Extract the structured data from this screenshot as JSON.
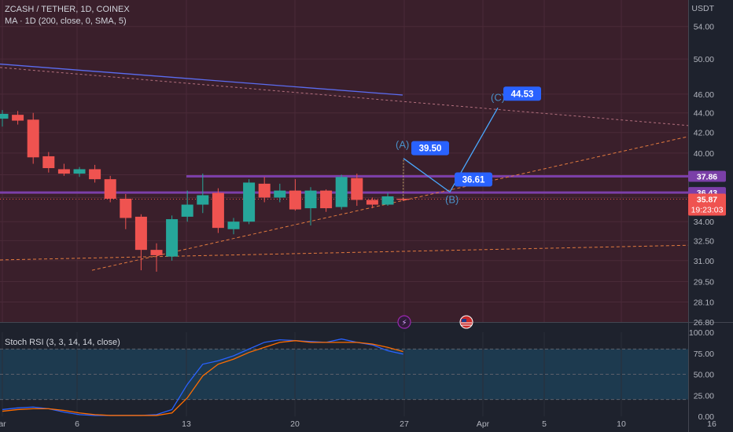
{
  "header": {
    "symbol_line": "ZCASH / TETHER, 1D, COINEX",
    "ma_line": "MA · 1D (200, close, 0, SMA, 5)",
    "currency": "USDT"
  },
  "rsi": {
    "label": "Stoch RSI (3, 3, 14, 14, close)"
  },
  "colors": {
    "background": "#1e222d",
    "main_pane": "#3a1f2b",
    "rsi_band": "#1d3a4f",
    "up": "#26a69a",
    "down": "#ef5350",
    "ma": "#5b6cf0",
    "level_band": "#7b3fa8",
    "trend_dash": "#e27a3f",
    "projection": "#4aa8ff",
    "stoch_k": "#2962ff",
    "stoch_d": "#ff6d00"
  },
  "chart_data": [
    {
      "type": "candlestick",
      "title": "ZCASH / TETHER, 1D, COINEX",
      "ylabel": "USDT",
      "y_scale": "log",
      "ylim": [
        26.8,
        57.5
      ],
      "x_ticks": [
        "ar",
        "6",
        "13",
        "20",
        "27",
        "Apr",
        "5",
        "10",
        "16"
      ],
      "y_ticks": [
        "54.00",
        "50.00",
        "46.00",
        "44.00",
        "42.00",
        "40.00",
        "38.00",
        "36.00",
        "34.00",
        "32.50",
        "31.00",
        "29.50",
        "28.10",
        "26.80"
      ],
      "candles": [
        {
          "o": 43.4,
          "h": 44.3,
          "l": 42.6,
          "c": 43.9
        },
        {
          "o": 43.8,
          "h": 44.2,
          "l": 42.8,
          "c": 43.2
        },
        {
          "o": 43.3,
          "h": 44.0,
          "l": 39.0,
          "c": 39.6
        },
        {
          "o": 39.7,
          "h": 40.1,
          "l": 38.2,
          "c": 38.6
        },
        {
          "o": 38.5,
          "h": 39.0,
          "l": 37.9,
          "c": 38.1
        },
        {
          "o": 38.1,
          "h": 38.7,
          "l": 37.8,
          "c": 38.5
        },
        {
          "o": 38.5,
          "h": 38.9,
          "l": 37.3,
          "c": 37.6
        },
        {
          "o": 37.6,
          "h": 37.9,
          "l": 35.6,
          "c": 35.9
        },
        {
          "o": 35.9,
          "h": 36.3,
          "l": 33.4,
          "c": 34.3
        },
        {
          "o": 34.4,
          "h": 34.6,
          "l": 30.3,
          "c": 31.8
        },
        {
          "o": 31.8,
          "h": 32.3,
          "l": 30.2,
          "c": 31.4
        },
        {
          "o": 31.3,
          "h": 34.5,
          "l": 31.0,
          "c": 34.2
        },
        {
          "o": 34.4,
          "h": 36.6,
          "l": 34.0,
          "c": 35.4
        },
        {
          "o": 35.4,
          "h": 38.1,
          "l": 34.7,
          "c": 36.2
        },
        {
          "o": 36.4,
          "h": 36.8,
          "l": 33.1,
          "c": 33.5
        },
        {
          "o": 33.4,
          "h": 34.3,
          "l": 33.0,
          "c": 34.0
        },
        {
          "o": 34.0,
          "h": 37.6,
          "l": 33.8,
          "c": 37.3
        },
        {
          "o": 37.2,
          "h": 37.8,
          "l": 35.6,
          "c": 36.0
        },
        {
          "o": 36.0,
          "h": 37.2,
          "l": 35.6,
          "c": 36.6
        },
        {
          "o": 36.6,
          "h": 37.6,
          "l": 34.9,
          "c": 35.0
        },
        {
          "o": 35.1,
          "h": 36.9,
          "l": 33.7,
          "c": 36.6
        },
        {
          "o": 36.6,
          "h": 36.7,
          "l": 34.8,
          "c": 35.1
        },
        {
          "o": 35.2,
          "h": 38.0,
          "l": 35.0,
          "c": 37.8
        },
        {
          "o": 37.7,
          "h": 38.1,
          "l": 35.3,
          "c": 35.8
        },
        {
          "o": 35.8,
          "h": 36.0,
          "l": 35.1,
          "c": 35.4
        },
        {
          "o": 35.4,
          "h": 36.4,
          "l": 35.3,
          "c": 36.1
        },
        {
          "o": 35.9,
          "h": 36.0,
          "l": 35.7,
          "c": 35.87
        }
      ],
      "moving_average": {
        "name": "MA · 1D (200, close, 0, SMA, 5)",
        "start": 49.4,
        "end": 45.9
      },
      "levels": [
        37.86,
        36.43
      ],
      "last_price": "35.87",
      "countdown": "19:23:03",
      "price_labels": [
        "37.86",
        "36.43",
        "35.87",
        "19:23:03"
      ],
      "projection": {
        "labels": [
          "(A)",
          "(B)",
          "(C)"
        ],
        "targets": [
          "39.50",
          "36.61",
          "44.53"
        ],
        "values": [
          39.5,
          36.61,
          44.53
        ]
      },
      "event_icons": [
        "lightning-icon",
        "us-flag-icon"
      ]
    },
    {
      "type": "line",
      "title": "Stoch RSI (3, 3, 14, 14, close)",
      "ylim": [
        0,
        100
      ],
      "y_ticks": [
        "100.00",
        "75.00",
        "50.00",
        "25.00",
        "0.00"
      ],
      "bands": [
        80,
        20
      ],
      "series": [
        {
          "values": [
            8,
            10,
            11,
            9,
            5,
            2,
            1,
            1,
            1,
            1,
            2,
            8,
            38,
            62,
            66,
            72,
            80,
            88,
            91,
            90,
            89,
            88,
            92,
            88,
            85,
            78,
            74
          ]
        },
        {
          "values": [
            6,
            8,
            9,
            9,
            7,
            4,
            2,
            1,
            1,
            1,
            1,
            4,
            22,
            48,
            62,
            68,
            76,
            82,
            88,
            90,
            88,
            88,
            88,
            88,
            86,
            82,
            77
          ]
        }
      ]
    }
  ]
}
